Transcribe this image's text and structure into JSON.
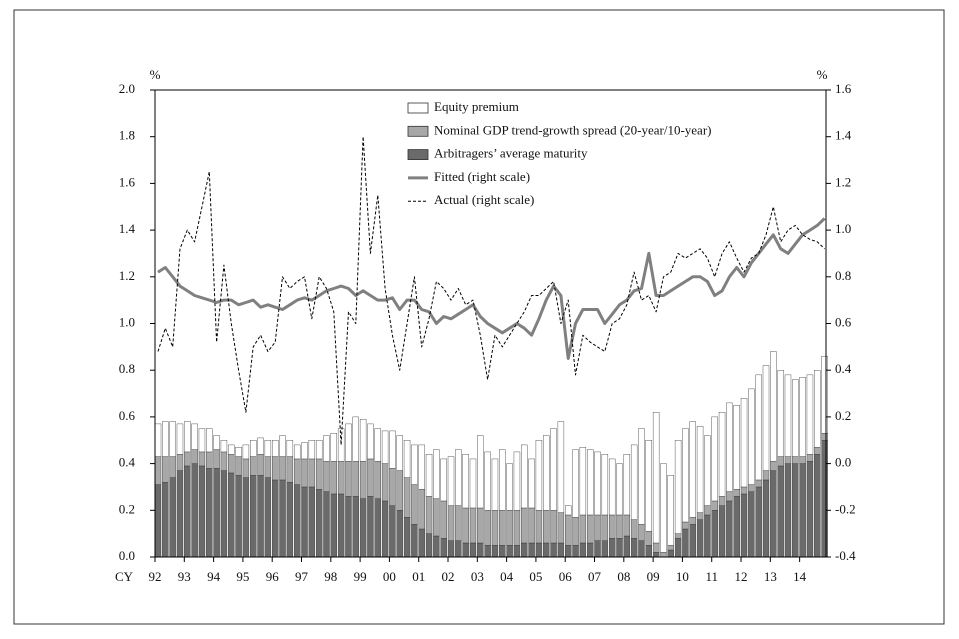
{
  "chart_data": {
    "type": "bar",
    "ylabel": "%",
    "y2label": "%",
    "xlabel": "CY",
    "legend": "top",
    "xlim": [
      1992,
      2014.9
    ],
    "xticks": [
      {
        "value": 1992,
        "label": "92"
      },
      {
        "value": 1993,
        "label": "93"
      },
      {
        "value": 1994,
        "label": "94"
      },
      {
        "value": 1995,
        "label": "95"
      },
      {
        "value": 1996,
        "label": "96"
      },
      {
        "value": 1997,
        "label": "97"
      },
      {
        "value": 1998,
        "label": "98"
      },
      {
        "value": 1999,
        "label": "99"
      },
      {
        "value": 2000,
        "label": "00"
      },
      {
        "value": 2001,
        "label": "01"
      },
      {
        "value": 2002,
        "label": "02"
      },
      {
        "value": 2003,
        "label": "03"
      },
      {
        "value": 2004,
        "label": "04"
      },
      {
        "value": 2005,
        "label": "05"
      },
      {
        "value": 2006,
        "label": "06"
      },
      {
        "value": 2007,
        "label": "07"
      },
      {
        "value": 2008,
        "label": "08"
      },
      {
        "value": 2009,
        "label": "09"
      },
      {
        "value": 2010,
        "label": "10"
      },
      {
        "value": 2011,
        "label": "11"
      },
      {
        "value": 2012,
        "label": "12"
      },
      {
        "value": 2013,
        "label": "13"
      },
      {
        "value": 2014,
        "label": "14"
      }
    ],
    "ylim": [
      0,
      2
    ],
    "yticks": [
      {
        "value": 0,
        "label": "0.0"
      },
      0.2,
      0.4,
      0.6,
      0.8,
      {
        "value": 1,
        "label": "1.0"
      },
      1.2,
      1.4,
      1.6,
      1.8,
      {
        "value": 2,
        "label": "2.0"
      }
    ],
    "y2lim": [
      -0.4,
      1.6
    ],
    "y2ticks": [
      -0.4,
      -0.2,
      {
        "value": 0,
        "label": "0.0"
      },
      0.2,
      0.4,
      0.6,
      0.8,
      {
        "value": 1,
        "label": "1.0"
      },
      1.2,
      1.4,
      1.6
    ],
    "x": [
      1992,
      1992.25,
      1992.5,
      1992.75,
      1993,
      1993.25,
      1993.5,
      1993.75,
      1994,
      1994.25,
      1994.5,
      1994.75,
      1995,
      1995.25,
      1995.5,
      1995.75,
      1996,
      1996.25,
      1996.5,
      1996.75,
      1997,
      1997.25,
      1997.5,
      1997.75,
      1998,
      1998.25,
      1998.5,
      1998.75,
      1999,
      1999.25,
      1999.5,
      1999.75,
      2000,
      2000.25,
      2000.5,
      2000.75,
      2001,
      2001.25,
      2001.5,
      2001.75,
      2002,
      2002.25,
      2002.5,
      2002.75,
      2003,
      2003.25,
      2003.5,
      2003.75,
      2004,
      2004.25,
      2004.5,
      2004.75,
      2005,
      2005.25,
      2005.5,
      2005.75,
      2006,
      2006.25,
      2006.5,
      2006.75,
      2007,
      2007.25,
      2007.5,
      2007.75,
      2008,
      2008.25,
      2008.5,
      2008.75,
      2009,
      2009.25,
      2009.5,
      2009.75,
      2010,
      2010.25,
      2010.5,
      2010.75,
      2011,
      2011.25,
      2011.5,
      2011.75,
      2012,
      2012.25,
      2012.5,
      2012.75,
      2013,
      2013.25,
      2013.5,
      2013.75,
      2014,
      2014.25,
      2014.5,
      2014.75
    ],
    "series": [
      {
        "name": "Equity premium",
        "type": "bar",
        "color": "#ffffff",
        "values": [
          0.14,
          0.15,
          0.15,
          0.13,
          0.13,
          0.11,
          0.1,
          0.1,
          0.06,
          0.05,
          0.04,
          0.04,
          0.06,
          0.07,
          0.07,
          0.07,
          0.07,
          0.09,
          0.07,
          0.06,
          0.07,
          0.08,
          0.08,
          0.11,
          0.12,
          0.14,
          0.16,
          0.19,
          0.18,
          0.15,
          0.14,
          0.14,
          0.16,
          0.15,
          0.16,
          0.17,
          0.19,
          0.18,
          0.21,
          0.18,
          0.21,
          0.24,
          0.23,
          0.21,
          0.31,
          0.25,
          0.22,
          0.26,
          0.2,
          0.25,
          0.27,
          0.21,
          0.3,
          0.32,
          0.35,
          0.39,
          0.04,
          0.29,
          0.29,
          0.28,
          0.27,
          0.26,
          0.24,
          0.22,
          0.26,
          0.32,
          0.41,
          0.39,
          0.56,
          0.38,
          0.3,
          0.4,
          0.4,
          0.41,
          0.37,
          0.3,
          0.36,
          0.36,
          0.38,
          0.36,
          0.38,
          0.41,
          0.45,
          0.45,
          0.47,
          0.37,
          0.35,
          0.33,
          0.34,
          0.34,
          0.33,
          0.33
        ]
      },
      {
        "name": "Nominal GDP trend-growth spread (20-year/10-year)",
        "type": "bar",
        "color": "#a8a8a8",
        "values": [
          0.12,
          0.11,
          0.09,
          0.07,
          0.06,
          0.06,
          0.06,
          0.07,
          0.08,
          0.08,
          0.08,
          0.08,
          0.08,
          0.08,
          0.09,
          0.09,
          0.1,
          0.1,
          0.11,
          0.11,
          0.12,
          0.12,
          0.13,
          0.13,
          0.14,
          0.14,
          0.15,
          0.15,
          0.16,
          0.16,
          0.16,
          0.16,
          0.16,
          0.17,
          0.17,
          0.17,
          0.17,
          0.16,
          0.16,
          0.16,
          0.15,
          0.15,
          0.15,
          0.15,
          0.15,
          0.15,
          0.15,
          0.15,
          0.15,
          0.15,
          0.15,
          0.15,
          0.14,
          0.14,
          0.14,
          0.13,
          0.13,
          0.12,
          0.12,
          0.12,
          0.11,
          0.11,
          0.1,
          0.1,
          0.09,
          0.08,
          0.07,
          0.06,
          0.04,
          0.02,
          0.02,
          0.02,
          0.03,
          0.03,
          0.03,
          0.04,
          0.04,
          0.04,
          0.04,
          0.03,
          0.03,
          0.03,
          0.03,
          0.04,
          0.04,
          0.04,
          0.03,
          0.03,
          0.03,
          0.03,
          0.03,
          0.03
        ]
      },
      {
        "name": "Arbitragers’ average maturity",
        "type": "bar",
        "color": "#6a6a6a",
        "values": [
          0.31,
          0.32,
          0.34,
          0.37,
          0.39,
          0.4,
          0.39,
          0.38,
          0.38,
          0.37,
          0.36,
          0.35,
          0.34,
          0.35,
          0.35,
          0.34,
          0.33,
          0.33,
          0.32,
          0.31,
          0.3,
          0.3,
          0.29,
          0.28,
          0.27,
          0.27,
          0.26,
          0.26,
          0.25,
          0.26,
          0.25,
          0.24,
          0.22,
          0.2,
          0.17,
          0.14,
          0.12,
          0.1,
          0.09,
          0.08,
          0.07,
          0.07,
          0.06,
          0.06,
          0.06,
          0.05,
          0.05,
          0.05,
          0.05,
          0.05,
          0.06,
          0.06,
          0.06,
          0.06,
          0.06,
          0.06,
          0.05,
          0.05,
          0.06,
          0.06,
          0.07,
          0.07,
          0.08,
          0.08,
          0.09,
          0.08,
          0.07,
          0.05,
          0.02,
          0,
          0.03,
          0.08,
          0.12,
          0.14,
          0.16,
          0.18,
          0.2,
          0.22,
          0.24,
          0.26,
          0.27,
          0.28,
          0.3,
          0.33,
          0.37,
          0.39,
          0.4,
          0.4,
          0.4,
          0.41,
          0.44,
          0.5
        ]
      },
      {
        "name": "Fitted (right scale)",
        "type": "line",
        "axis": "y2",
        "color": "#808080",
        "values": [
          0.82,
          0.84,
          0.8,
          0.76,
          0.74,
          0.72,
          0.71,
          0.7,
          0.69,
          0.7,
          0.7,
          0.68,
          0.69,
          0.7,
          0.67,
          0.68,
          0.67,
          0.66,
          0.68,
          0.7,
          0.71,
          0.7,
          0.72,
          0.74,
          0.75,
          0.76,
          0.75,
          0.72,
          0.74,
          0.72,
          0.7,
          0.7,
          0.71,
          0.66,
          0.7,
          0.7,
          0.66,
          0.65,
          0.6,
          0.63,
          0.62,
          0.64,
          0.66,
          0.68,
          0.63,
          0.6,
          0.58,
          0.56,
          0.58,
          0.6,
          0.58,
          0.55,
          0.62,
          0.7,
          0.76,
          0.72,
          0.45,
          0.6,
          0.66,
          0.66,
          0.66,
          0.6,
          0.64,
          0.68,
          0.7,
          0.74,
          0.75,
          0.9,
          0.72,
          0.72,
          0.74,
          0.76,
          0.78,
          0.8,
          0.8,
          0.78,
          0.72,
          0.74,
          0.8,
          0.84,
          0.8,
          0.86,
          0.9,
          0.94,
          0.98,
          0.92,
          0.9,
          0.94,
          0.98,
          1.0,
          1.02,
          1.05
        ]
      },
      {
        "name": "Actual (right scale)",
        "type": "line",
        "axis": "y2",
        "color": "#000000",
        "dashed": true,
        "values": [
          0.48,
          0.58,
          0.5,
          0.92,
          1.0,
          0.95,
          1.1,
          1.25,
          0.52,
          0.85,
          0.6,
          0.4,
          0.22,
          0.5,
          0.55,
          0.48,
          0.52,
          0.8,
          0.75,
          0.78,
          0.8,
          0.62,
          0.8,
          0.75,
          0.65,
          0.08,
          0.65,
          0.6,
          1.4,
          0.9,
          1.15,
          0.75,
          0.55,
          0.4,
          0.6,
          0.8,
          0.5,
          0.62,
          0.78,
          0.75,
          0.7,
          0.75,
          0.68,
          0.7,
          0.55,
          0.36,
          0.55,
          0.5,
          0.55,
          0.6,
          0.65,
          0.72,
          0.72,
          0.75,
          0.78,
          0.6,
          0.7,
          0.38,
          0.55,
          0.52,
          0.5,
          0.48,
          0.6,
          0.62,
          0.68,
          0.82,
          0.7,
          0.72,
          0.65,
          0.8,
          0.82,
          0.9,
          0.88,
          0.9,
          0.92,
          0.88,
          0.8,
          0.9,
          0.95,
          0.88,
          0.82,
          0.88,
          0.9,
          0.98,
          1.1,
          0.95,
          1.0,
          1.02,
          0.98,
          0.96,
          0.95,
          0.92
        ]
      }
    ]
  }
}
